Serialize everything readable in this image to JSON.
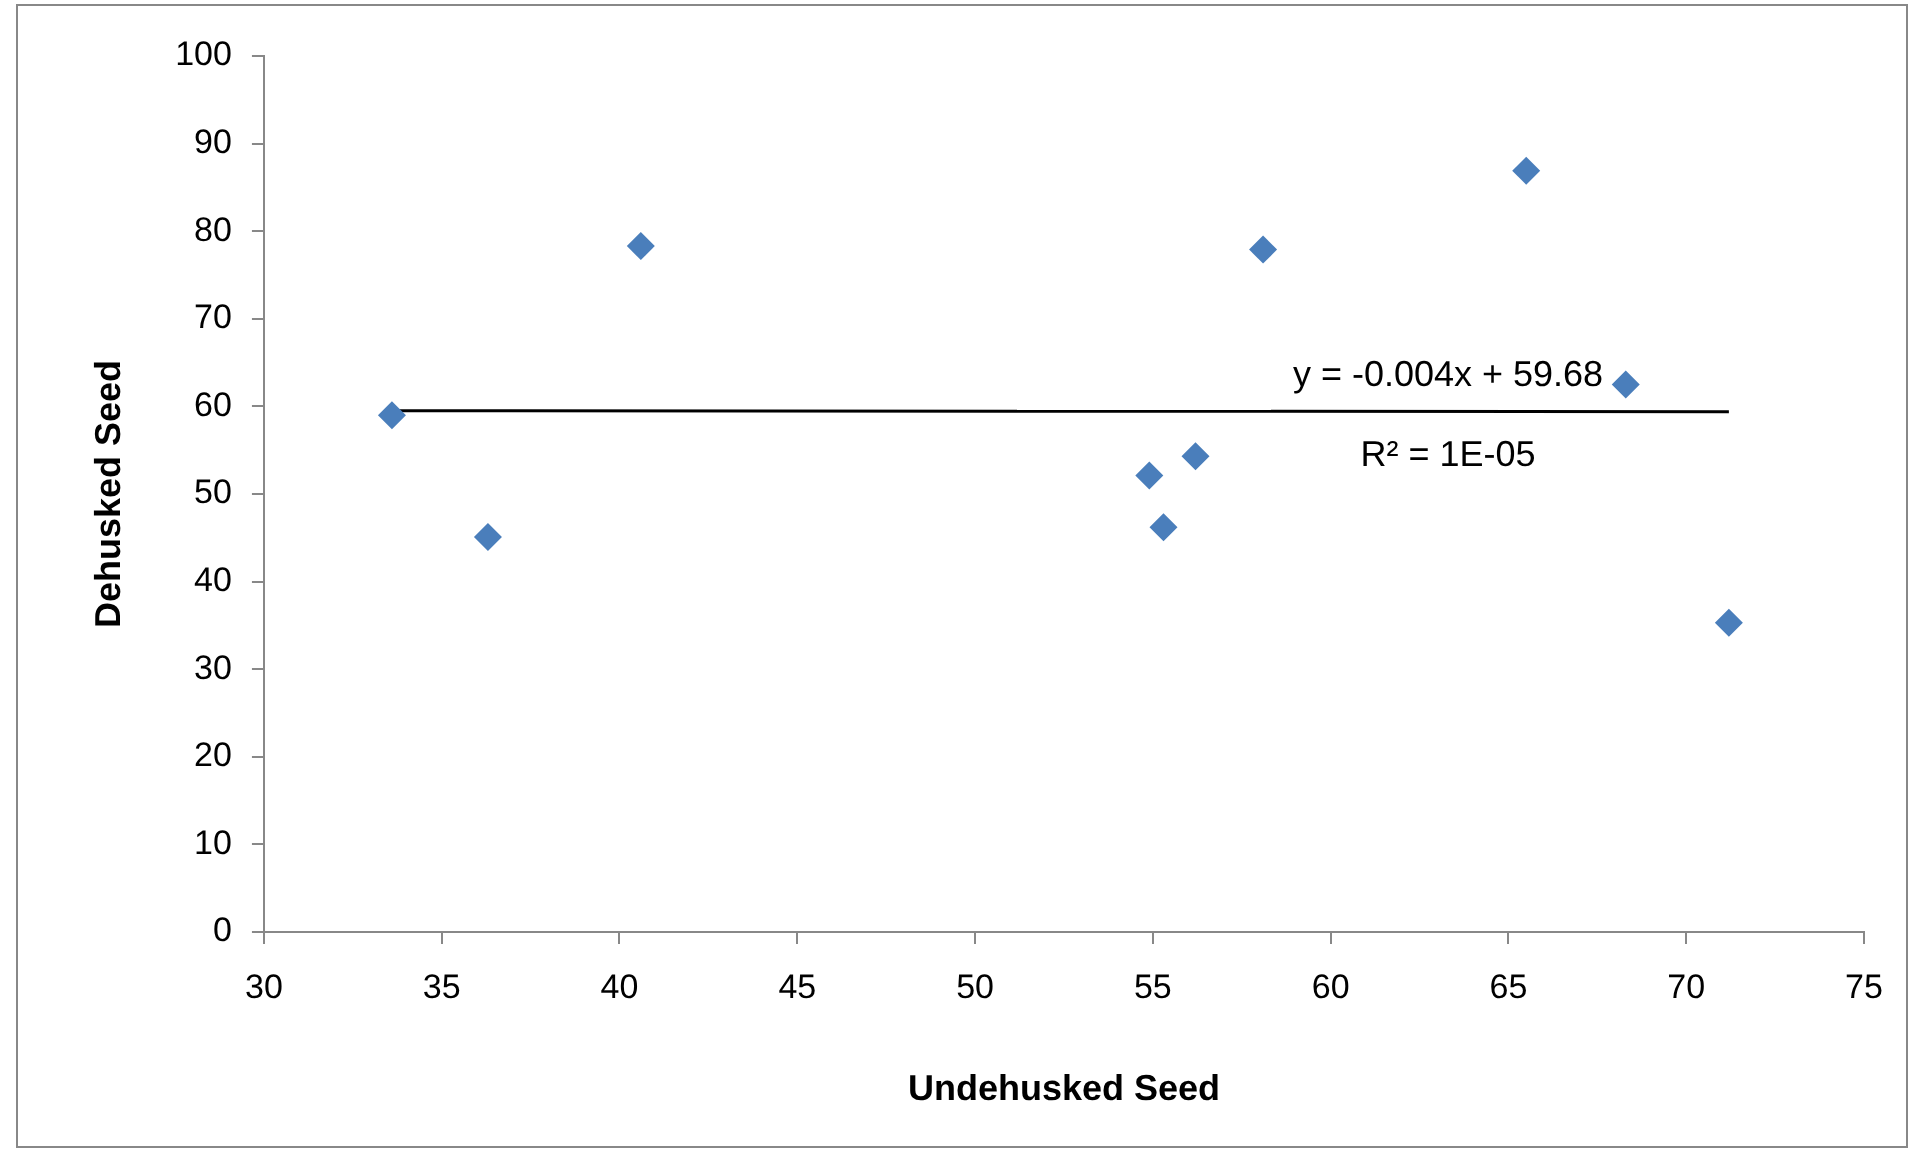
{
  "chart_data": {
    "type": "scatter",
    "xlabel": "Undehusked Seed",
    "ylabel": "Dehusked Seed",
    "xlim": [
      30,
      75
    ],
    "xticks": [
      30,
      35,
      40,
      45,
      50,
      55,
      60,
      65,
      70,
      75
    ],
    "ylim": [
      0,
      100
    ],
    "yticks": [
      0,
      10,
      20,
      30,
      40,
      50,
      60,
      70,
      80,
      90,
      100
    ],
    "grid": false,
    "legend": false,
    "marker": "diamond",
    "series": [
      {
        "color": "#4a7ebb",
        "x": [
          33.6,
          36.3,
          40.6,
          54.9,
          55.3,
          56.2,
          58.1,
          65.5,
          68.3,
          71.2
        ],
        "values": [
          59.0,
          45.1,
          78.3,
          52.1,
          46.2,
          54.3,
          77.9,
          86.9,
          62.5,
          35.3
        ]
      },
      {
        "type": "line",
        "color": "#000000",
        "marker": "none",
        "x": [
          33.6,
          71.2
        ],
        "values": [
          59.5,
          59.4
        ]
      }
    ],
    "annotations": [
      "y = -0.004x + 59.68",
      "R² = 1E-05"
    ]
  }
}
